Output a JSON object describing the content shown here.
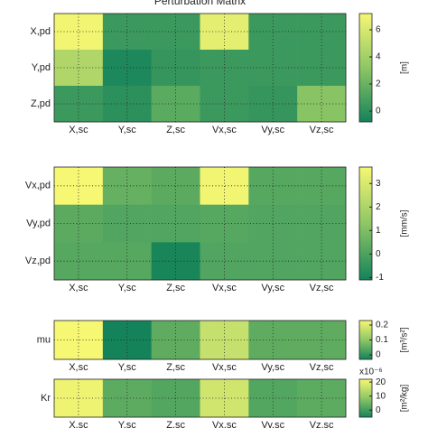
{
  "chart_data": [
    {
      "type": "heatmap",
      "title": "Perturbation Matrix",
      "categories": [
        "X,sc",
        "Y,sc",
        "Z,sc",
        "Vx,sc",
        "Vy,sc",
        "Vz,sc"
      ],
      "rows": [
        "X,pd",
        "Y,pd",
        "Z,pd"
      ],
      "values": [
        [
          7,
          0.5,
          0.5,
          6.5,
          0.5,
          0.5
        ],
        [
          4.5,
          -0.5,
          0.3,
          0.5,
          0.5,
          0.5
        ],
        [
          0.5,
          0,
          1.5,
          0.5,
          0.3,
          3
        ]
      ],
      "clim": [
        -0.8,
        7.2
      ],
      "cticks": [
        0,
        2,
        4,
        6
      ],
      "colorbar_label": "[m]",
      "colormap": [
        "#14835a",
        "#8ec665",
        "#f6f773"
      ],
      "grid": true
    },
    {
      "type": "heatmap",
      "categories": [
        "X,sc",
        "Y,sc",
        "Z,sc",
        "Vx,sc",
        "Vy,sc",
        "Vz,sc"
      ],
      "rows": [
        "Vx,pd",
        "Vy,pd",
        "Vz,pd"
      ],
      "values": [
        [
          3.7,
          0.5,
          0.3,
          3.6,
          0.2,
          0.2
        ],
        [
          0.3,
          0.1,
          0.1,
          0.2,
          0.1,
          0.1
        ],
        [
          0.2,
          0.2,
          -1,
          0.1,
          0.1,
          0.1
        ]
      ],
      "clim": [
        -1.1,
        3.7
      ],
      "cticks": [
        -1,
        0,
        1,
        2,
        3
      ],
      "colorbar_label": "[mm/s]",
      "colormap": [
        "#14835a",
        "#8ec665",
        "#f6f773"
      ],
      "grid": true
    },
    {
      "type": "heatmap",
      "categories": [
        "X,sc",
        "Y,sc",
        "Z,sc",
        "Vx,sc",
        "Vy,sc",
        "Vz,sc"
      ],
      "rows": [
        "mu"
      ],
      "values": [
        [
          0.23,
          -0.03,
          0.05,
          0.17,
          0.05,
          0.05
        ]
      ],
      "clim": [
        -0.03,
        0.23
      ],
      "cticks": [
        0,
        0.1,
        0.2
      ],
      "colorbar_label": "[m³/s²]",
      "colormap": [
        "#14835a",
        "#8ec665",
        "#f6f773"
      ],
      "grid": true
    },
    {
      "type": "heatmap",
      "categories": [
        "X,sc",
        "Y,sc",
        "Z,sc",
        "Vx,sc",
        "Vy,sc",
        "Vz,sc"
      ],
      "rows": [
        "Kr"
      ],
      "values": [
        [
          21,
          3,
          2,
          17,
          2,
          3
        ]
      ],
      "clim": [
        -5,
        22
      ],
      "cticks": [
        0,
        10,
        20
      ],
      "colorbar_label": "[m²/kg]",
      "colorbar_exponent": "x10⁻⁶",
      "colormap": [
        "#14835a",
        "#8ec665",
        "#f6f773"
      ],
      "grid": true
    }
  ]
}
